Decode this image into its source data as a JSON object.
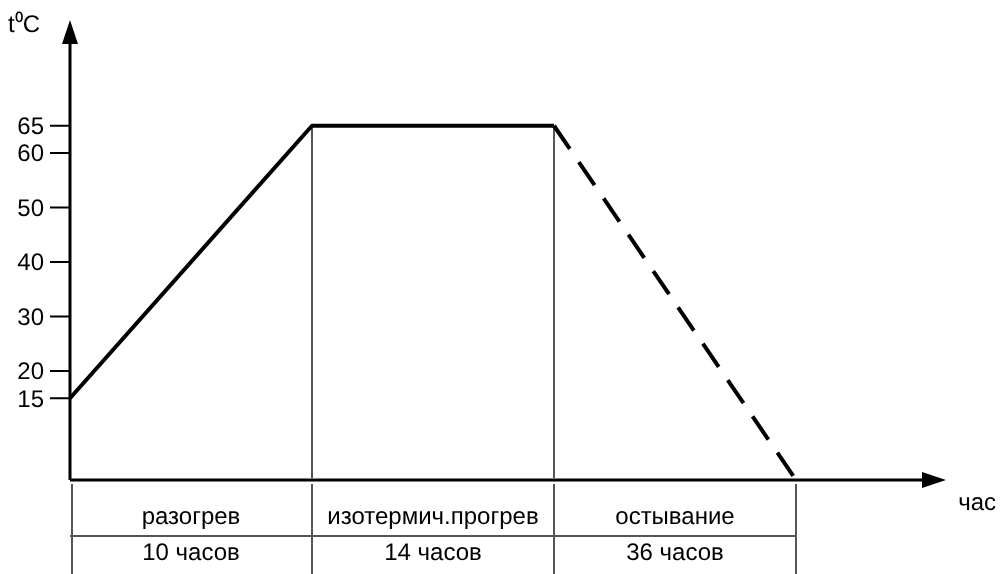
{
  "chart_data": {
    "type": "line",
    "ylabel": "t⁰C",
    "xlabel": "час",
    "categories": [
      null,
      null,
      null,
      null
    ],
    "ylim": [
      0,
      80
    ],
    "yticks": [
      15,
      20,
      30,
      40,
      50,
      60,
      65
    ],
    "series": [
      {
        "color": "#000000",
        "values": [
          15,
          65,
          65,
          null
        ],
        "line_style": "solid"
      },
      {
        "color": "#000000",
        "values": [
          null,
          null,
          65,
          0
        ],
        "line_style": "dashed"
      }
    ],
    "annotations": [
      "разогрев",
      "10 часов",
      "изотермич.прогрев",
      "14 часов",
      "остывание",
      "36 часов"
    ]
  }
}
